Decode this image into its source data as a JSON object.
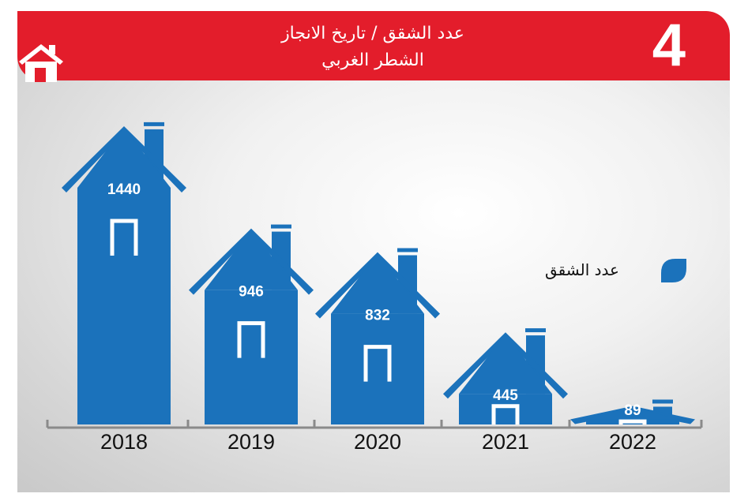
{
  "header": {
    "title_line1": "عدد الشقق / تاريخ الانجاز",
    "title_line2": "الشطر الغربي",
    "badge_number": "4"
  },
  "legend": {
    "label": "عدد الشقق"
  },
  "colors": {
    "header": "#e31d2b",
    "house": "#1b72bb",
    "axis": "#8a8a8a"
  },
  "icons": [
    "home-icon",
    "leaf-legend-icon"
  ],
  "chart_data": {
    "type": "bar",
    "categories": [
      "2018",
      "2019",
      "2020",
      "2021",
      "2022"
    ],
    "series": [
      {
        "name": "عدد الشقق",
        "values": [
          1440,
          946,
          832,
          445,
          89
        ]
      }
    ],
    "data_labels": [
      "1440",
      "946",
      "832",
      "445",
      "89"
    ]
  }
}
